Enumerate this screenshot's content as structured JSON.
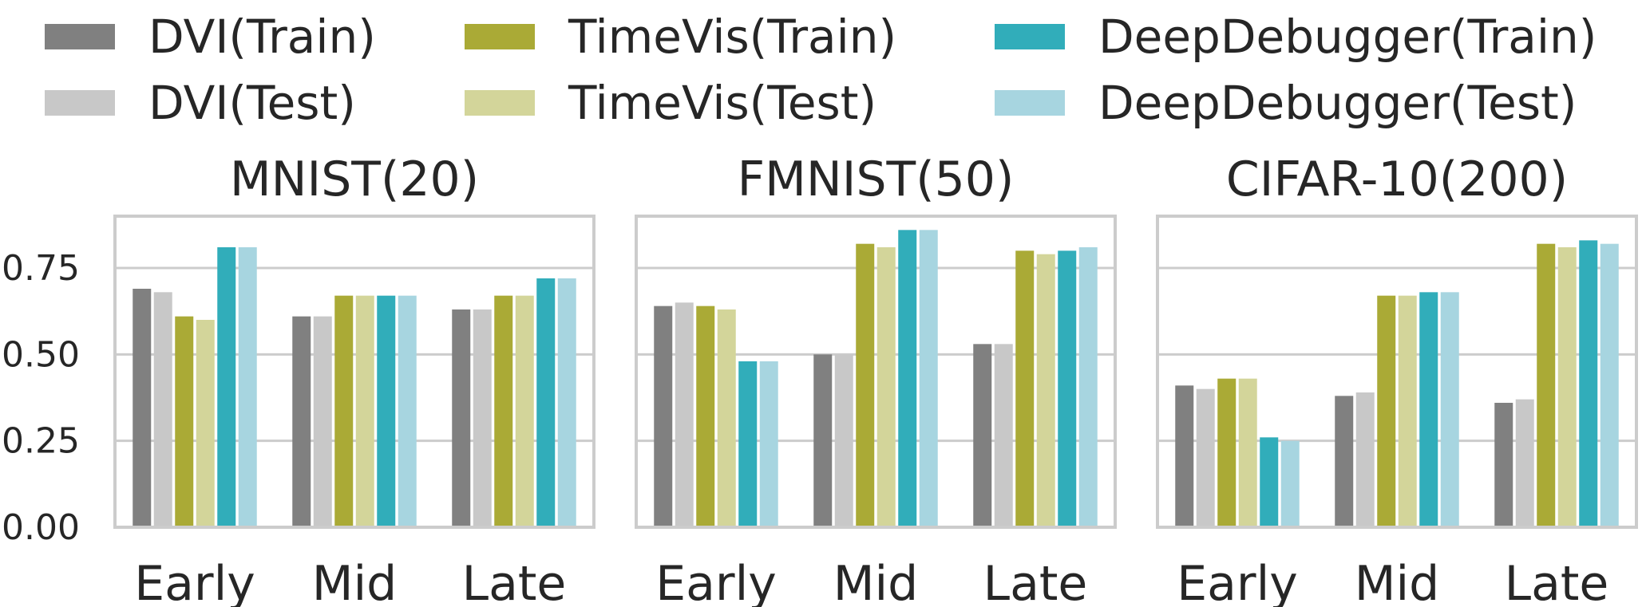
{
  "legend": [
    {
      "label": "DVI(Train)",
      "color": "#808080"
    },
    {
      "label": "TimeVis(Train)",
      "color": "#aaaa36"
    },
    {
      "label": "DeepDebugger(Train)",
      "color": "#31adba"
    },
    {
      "label": "DVI(Test)",
      "color": "#c8c8c8"
    },
    {
      "label": "TimeVis(Test)",
      "color": "#d3d59a"
    },
    {
      "label": "DeepDebugger(Test)",
      "color": "#a7d5e0"
    }
  ],
  "chart_data": [
    {
      "type": "bar",
      "title": "MNIST(20)",
      "categories": [
        "Early",
        "Mid",
        "Late"
      ],
      "ylim": [
        0,
        0.9
      ],
      "yticks": [
        "0.00",
        "0.25",
        "0.50",
        "0.75"
      ],
      "grid": true,
      "series": [
        {
          "name": "DVI(Train)",
          "color": "#808080",
          "values": [
            0.69,
            0.61,
            0.63
          ]
        },
        {
          "name": "DVI(Test)",
          "color": "#c8c8c8",
          "values": [
            0.68,
            0.61,
            0.63
          ]
        },
        {
          "name": "TimeVis(Train)",
          "color": "#aaaa36",
          "values": [
            0.61,
            0.67,
            0.67
          ]
        },
        {
          "name": "TimeVis(Test)",
          "color": "#d3d59a",
          "values": [
            0.6,
            0.67,
            0.67
          ]
        },
        {
          "name": "DeepDebugger(Train)",
          "color": "#31adba",
          "values": [
            0.81,
            0.67,
            0.72
          ]
        },
        {
          "name": "DeepDebugger(Test)",
          "color": "#a7d5e0",
          "values": [
            0.81,
            0.67,
            0.72
          ]
        }
      ]
    },
    {
      "type": "bar",
      "title": "FMNIST(50)",
      "categories": [
        "Early",
        "Mid",
        "Late"
      ],
      "ylim": [
        0,
        0.9
      ],
      "grid": true,
      "series": [
        {
          "name": "DVI(Train)",
          "color": "#808080",
          "values": [
            0.64,
            0.5,
            0.53
          ]
        },
        {
          "name": "DVI(Test)",
          "color": "#c8c8c8",
          "values": [
            0.65,
            0.5,
            0.53
          ]
        },
        {
          "name": "TimeVis(Train)",
          "color": "#aaaa36",
          "values": [
            0.64,
            0.82,
            0.8
          ]
        },
        {
          "name": "TimeVis(Test)",
          "color": "#d3d59a",
          "values": [
            0.63,
            0.81,
            0.79
          ]
        },
        {
          "name": "DeepDebugger(Train)",
          "color": "#31adba",
          "values": [
            0.48,
            0.86,
            0.8
          ]
        },
        {
          "name": "DeepDebugger(Test)",
          "color": "#a7d5e0",
          "values": [
            0.48,
            0.86,
            0.81
          ]
        }
      ]
    },
    {
      "type": "bar",
      "title": "CIFAR-10(200)",
      "categories": [
        "Early",
        "Mid",
        "Late"
      ],
      "ylim": [
        0,
        0.9
      ],
      "grid": true,
      "series": [
        {
          "name": "DVI(Train)",
          "color": "#808080",
          "values": [
            0.41,
            0.38,
            0.36
          ]
        },
        {
          "name": "DVI(Test)",
          "color": "#c8c8c8",
          "values": [
            0.4,
            0.39,
            0.37
          ]
        },
        {
          "name": "TimeVis(Train)",
          "color": "#aaaa36",
          "values": [
            0.43,
            0.67,
            0.82
          ]
        },
        {
          "name": "TimeVis(Test)",
          "color": "#d3d59a",
          "values": [
            0.43,
            0.67,
            0.81
          ]
        },
        {
          "name": "DeepDebugger(Train)",
          "color": "#31adba",
          "values": [
            0.26,
            0.68,
            0.83
          ]
        },
        {
          "name": "DeepDebugger(Test)",
          "color": "#a7d5e0",
          "values": [
            0.25,
            0.68,
            0.82
          ]
        }
      ]
    }
  ]
}
